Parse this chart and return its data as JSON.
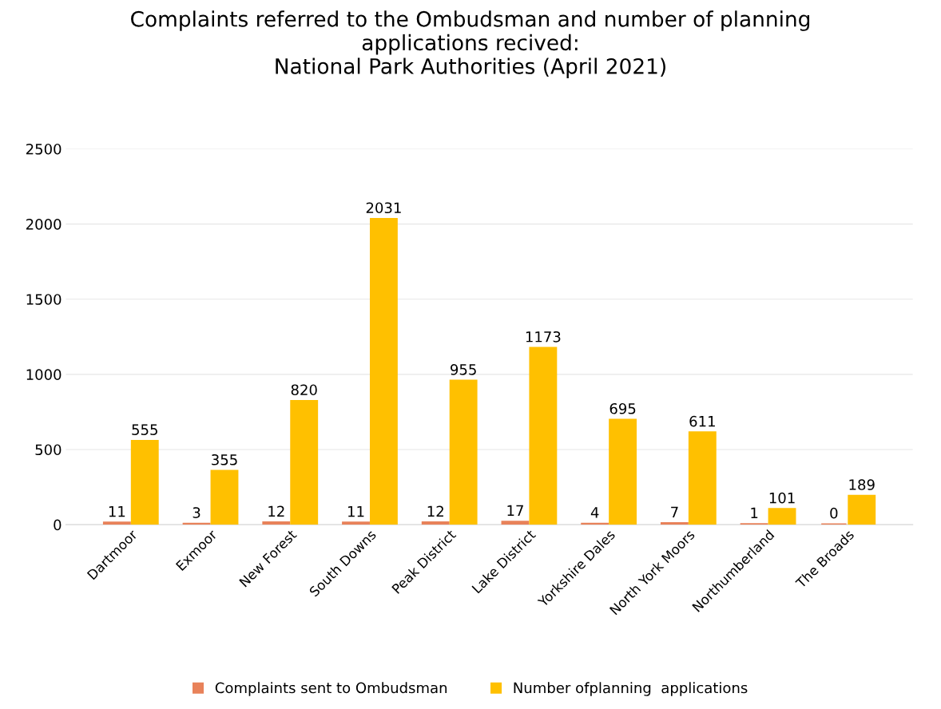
{
  "chart_data": {
    "type": "bar",
    "title": "Complaints referred to the Ombudsman and number of planning\napplications recived:\nNational Park Authorities (April 2021)",
    "categories": [
      "Dartmoor",
      "Exmoor",
      "New Forest",
      "South Downs",
      "Peak District",
      "Lake District",
      "Yorkshire Dales",
      "North York Moors",
      "Northumberland",
      "The Broads"
    ],
    "series": [
      {
        "name": "Complaints sent to Ombudsman",
        "color": "#e8825a",
        "values": [
          11,
          3,
          12,
          11,
          12,
          17,
          4,
          7,
          1,
          0
        ]
      },
      {
        "name": "Number ofplanning  applications",
        "color": "#ffc000",
        "values": [
          555,
          355,
          820,
          2031,
          955,
          1173,
          695,
          611,
          101,
          189
        ]
      }
    ],
    "ylim": [
      0,
      2500
    ],
    "yticks": [
      0,
      500,
      1000,
      1500,
      2000,
      2500
    ],
    "grid": "y",
    "legend": "bottom",
    "data_labels": true
  }
}
